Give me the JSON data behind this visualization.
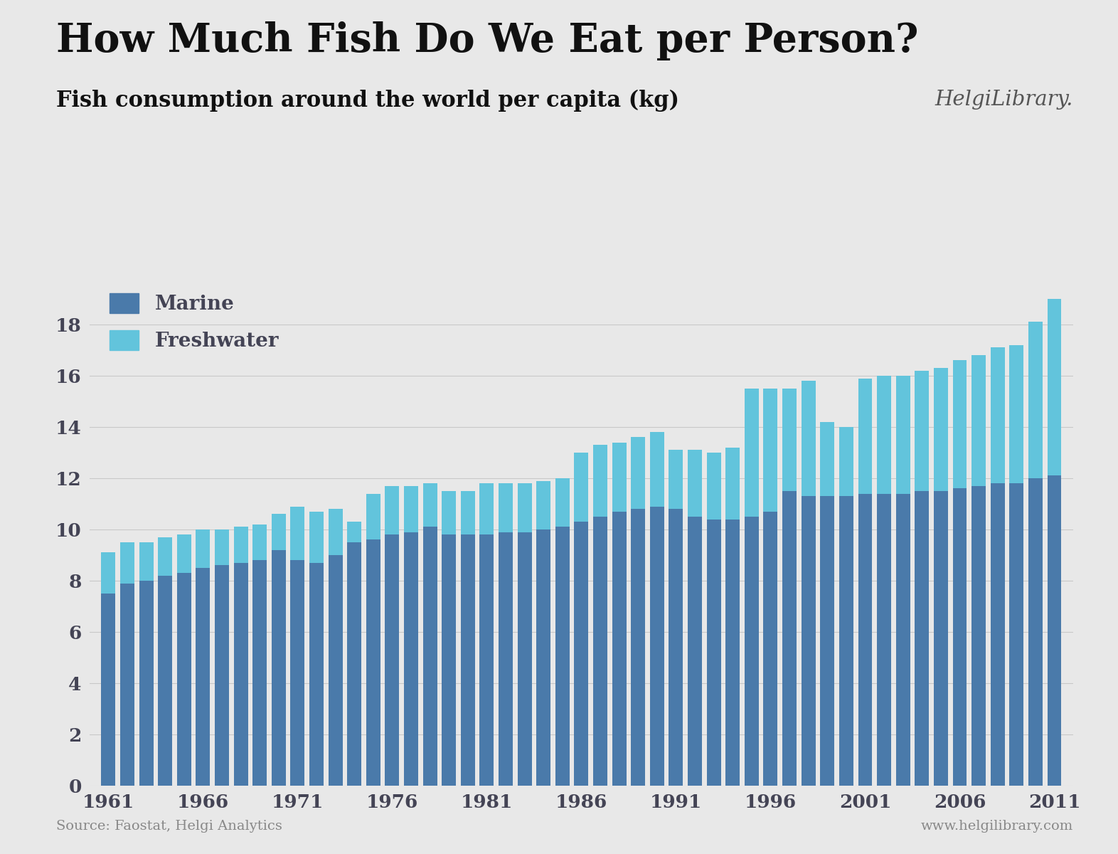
{
  "title": "How Much Fish Do We Eat per Person?",
  "subtitle": "Fish consumption around the world per capita (kg)",
  "source_text": "Source: Faostat, Helgi Analytics",
  "website_text": "www.helgilibrary.com",
  "years": [
    1961,
    1962,
    1963,
    1964,
    1965,
    1966,
    1967,
    1968,
    1969,
    1970,
    1971,
    1972,
    1973,
    1974,
    1975,
    1976,
    1977,
    1978,
    1979,
    1980,
    1981,
    1982,
    1983,
    1984,
    1985,
    1986,
    1987,
    1988,
    1989,
    1990,
    1991,
    1992,
    1993,
    1994,
    1995,
    1996,
    1997,
    1998,
    1999,
    2000,
    2001,
    2002,
    2003,
    2004,
    2005,
    2006,
    2007,
    2008,
    2009,
    2010,
    2011
  ],
  "marine": [
    7.5,
    7.9,
    8.0,
    8.2,
    8.3,
    8.5,
    8.6,
    8.7,
    8.8,
    9.2,
    8.8,
    8.7,
    9.0,
    9.5,
    9.6,
    9.8,
    9.9,
    10.1,
    9.8,
    9.8,
    9.8,
    9.9,
    9.9,
    10.0,
    10.1,
    10.3,
    10.5,
    10.7,
    10.8,
    10.9,
    10.8,
    10.5,
    10.4,
    10.4,
    10.5,
    10.7,
    11.5,
    11.3,
    11.3,
    11.3,
    11.4,
    11.4,
    11.4,
    11.5,
    11.5,
    11.6,
    11.7,
    11.8,
    11.8,
    12.0,
    12.1
  ],
  "freshwater": [
    1.6,
    1.6,
    1.5,
    1.5,
    1.5,
    1.5,
    1.4,
    1.4,
    1.4,
    1.4,
    2.1,
    2.0,
    1.8,
    0.8,
    1.8,
    1.9,
    1.8,
    1.7,
    1.7,
    1.7,
    2.0,
    1.9,
    1.9,
    1.9,
    1.9,
    2.7,
    2.8,
    2.7,
    2.8,
    2.9,
    2.3,
    2.6,
    2.6,
    2.8,
    5.0,
    4.8,
    4.0,
    4.5,
    2.9,
    2.7,
    4.5,
    4.6,
    4.6,
    4.7,
    4.8,
    5.0,
    5.1,
    5.3,
    5.4,
    6.1,
    6.9
  ],
  "marine_color": "#4a7aaa",
  "freshwater_color": "#62c4dc",
  "bg_color": "#e8e8e8",
  "title_color": "#111111",
  "subtitle_color": "#111111",
  "axis_tick_color": "#444455",
  "grid_color": "#c8c8c8",
  "source_color": "#888888",
  "ylim": [
    0,
    20
  ],
  "yticks": [
    0,
    2,
    4,
    6,
    8,
    10,
    12,
    14,
    16,
    18
  ],
  "xtick_years": [
    1961,
    1966,
    1971,
    1976,
    1981,
    1986,
    1991,
    1996,
    2001,
    2006,
    2011
  ]
}
